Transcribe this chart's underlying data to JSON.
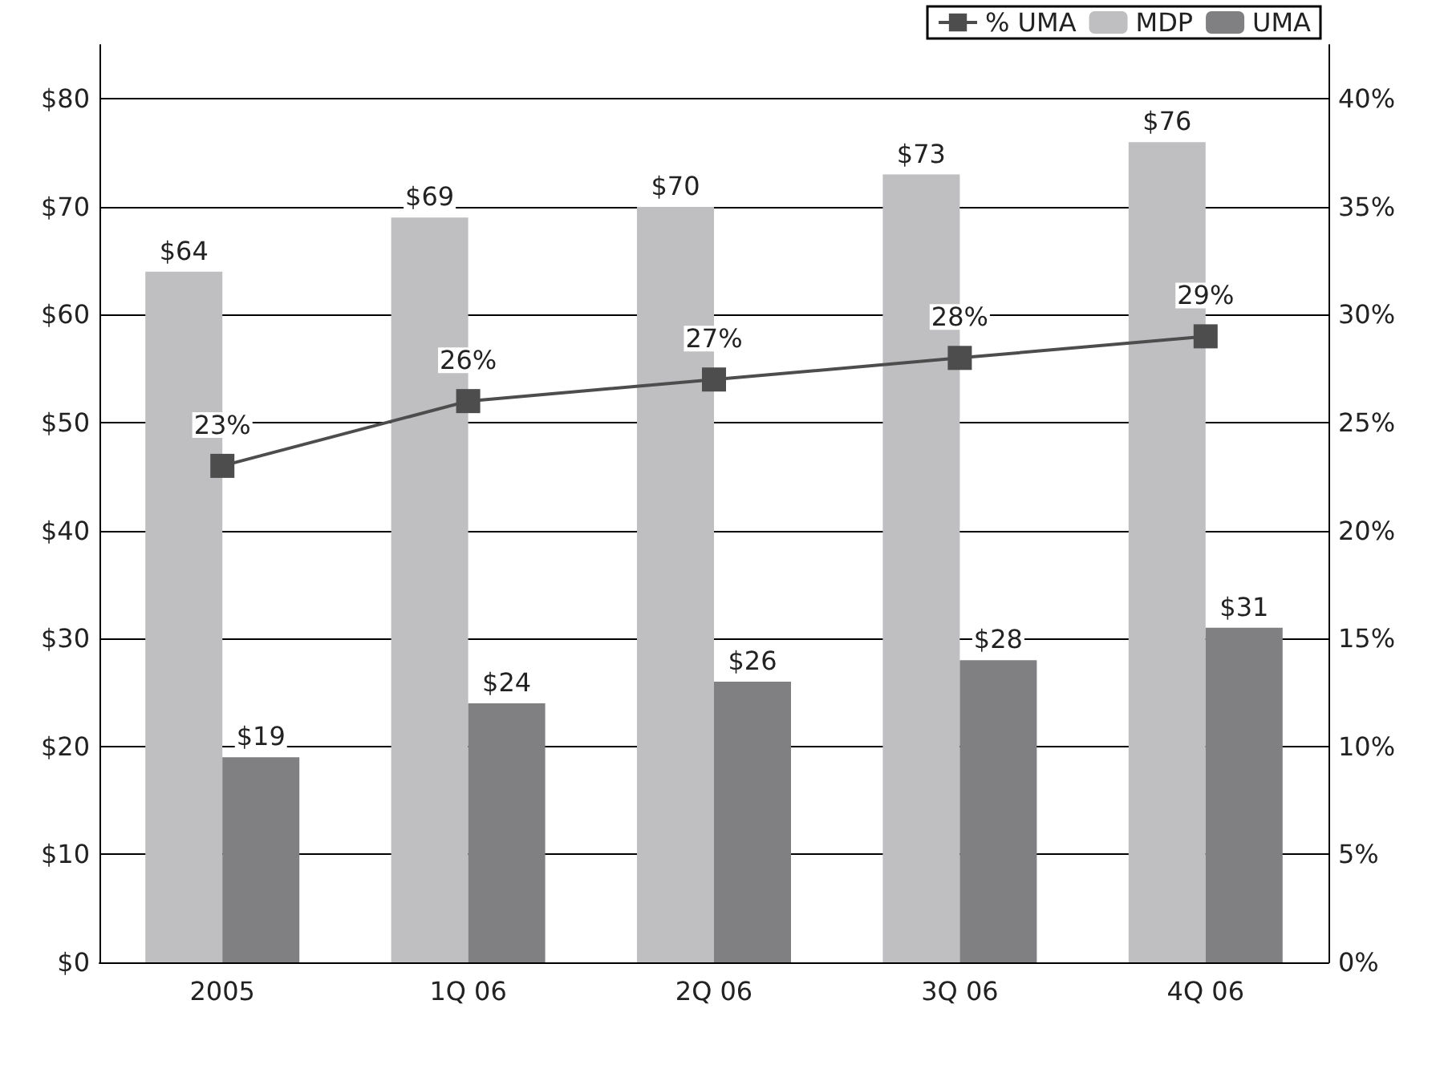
{
  "chart_data": {
    "type": "bar",
    "categories": [
      "2005",
      "1Q 06",
      "2Q 06",
      "3Q 06",
      "4Q 06"
    ],
    "series": [
      {
        "name": "MDP",
        "color": "#bfbfc1",
        "values": [
          64,
          69,
          70,
          73,
          76
        ],
        "value_labels": [
          "$64",
          "$69",
          "$70",
          "$73",
          "$76"
        ]
      },
      {
        "name": "UMA",
        "color": "#808083",
        "values": [
          19,
          24,
          26,
          28,
          31
        ],
        "value_labels": [
          "$19",
          "$24",
          "$26",
          "$28",
          "$31"
        ]
      },
      {
        "name": "% UMA",
        "type": "line",
        "axis": "y2",
        "color": "#4d4d4d",
        "values": [
          23,
          26,
          27,
          28,
          29
        ],
        "value_labels": [
          "23%",
          "26%",
          "27%",
          "28%",
          "29%"
        ],
        "marker": "square",
        "line_style": "solid"
      }
    ],
    "ylim": [
      0,
      85
    ],
    "yticks": [
      {
        "value": 0,
        "label": "$0"
      },
      {
        "value": 10,
        "label": "$10"
      },
      {
        "value": 20,
        "label": "$20"
      },
      {
        "value": 30,
        "label": "$30"
      },
      {
        "value": 40,
        "label": "$40"
      },
      {
        "value": 50,
        "label": "$50"
      },
      {
        "value": 60,
        "label": "$60"
      },
      {
        "value": 70,
        "label": "$70"
      },
      {
        "value": 80,
        "label": "$80"
      }
    ],
    "y2lim": [
      0,
      42.5
    ],
    "y2ticks": [
      {
        "value": 0,
        "label": "0%"
      },
      {
        "value": 5,
        "label": "5%"
      },
      {
        "value": 10,
        "label": "10%"
      },
      {
        "value": 15,
        "label": "15%"
      },
      {
        "value": 20,
        "label": "20%"
      },
      {
        "value": 25,
        "label": "25%"
      },
      {
        "value": 30,
        "label": "30%"
      },
      {
        "value": 35,
        "label": "35%"
      },
      {
        "value": 40,
        "label": "40%"
      }
    ],
    "grid": "y",
    "legend": "top right"
  }
}
